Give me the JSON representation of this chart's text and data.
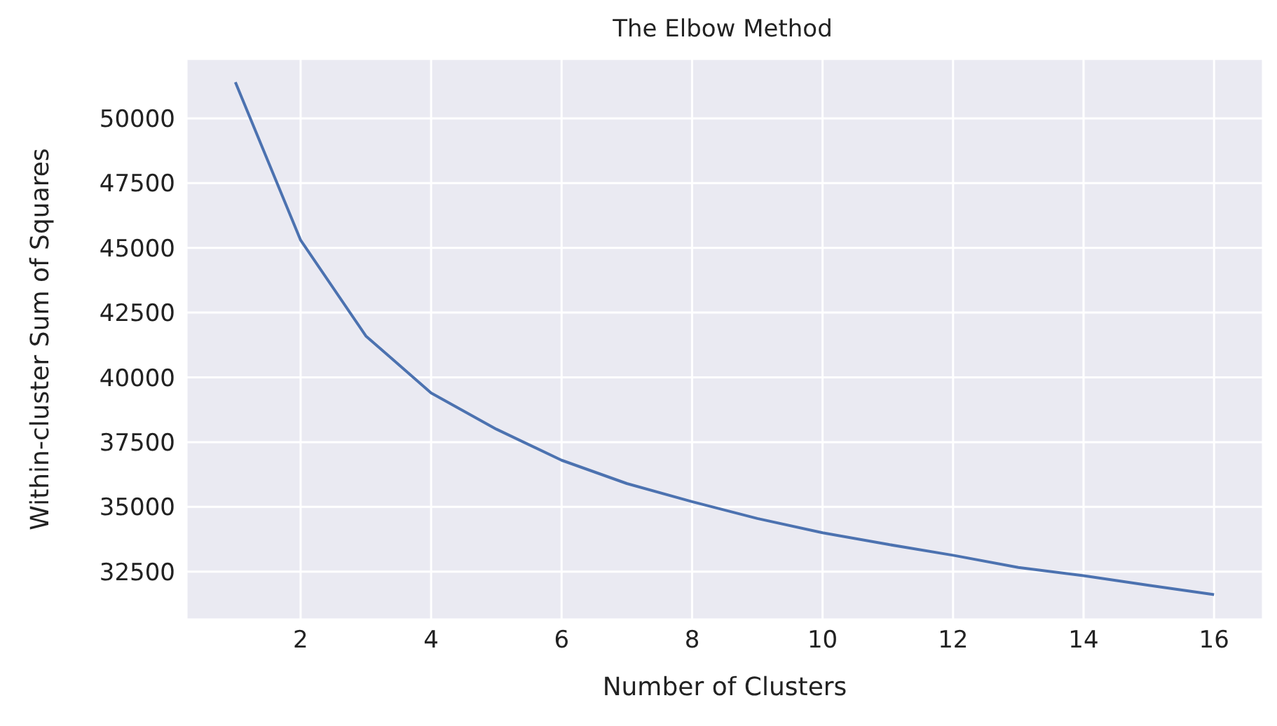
{
  "chart_data": {
    "type": "line",
    "title": "The Elbow Method",
    "xlabel": "Number of Clusters",
    "ylabel": "Within-cluster Sum of Squares",
    "x": [
      1,
      2,
      3,
      4,
      5,
      6,
      7,
      8,
      9,
      10,
      11,
      12,
      13,
      14,
      15,
      16
    ],
    "series": [
      {
        "color": "#4c72b0",
        "values": [
          51400,
          45300,
          41600,
          39400,
          38000,
          36800,
          35900,
          35200,
          34550,
          34000,
          33550,
          33130,
          32660,
          32340,
          31970,
          31610
        ]
      }
    ],
    "xlim": [
      0.25,
      16.75
    ],
    "xticks": [
      2,
      4,
      6,
      8,
      10,
      12,
      14,
      16
    ],
    "ylim": [
      30650,
      52300
    ],
    "yticks": [
      32500,
      35000,
      37500,
      40000,
      42500,
      45000,
      47500,
      50000
    ],
    "grid": true,
    "marker": "none",
    "line_style": "solid"
  }
}
